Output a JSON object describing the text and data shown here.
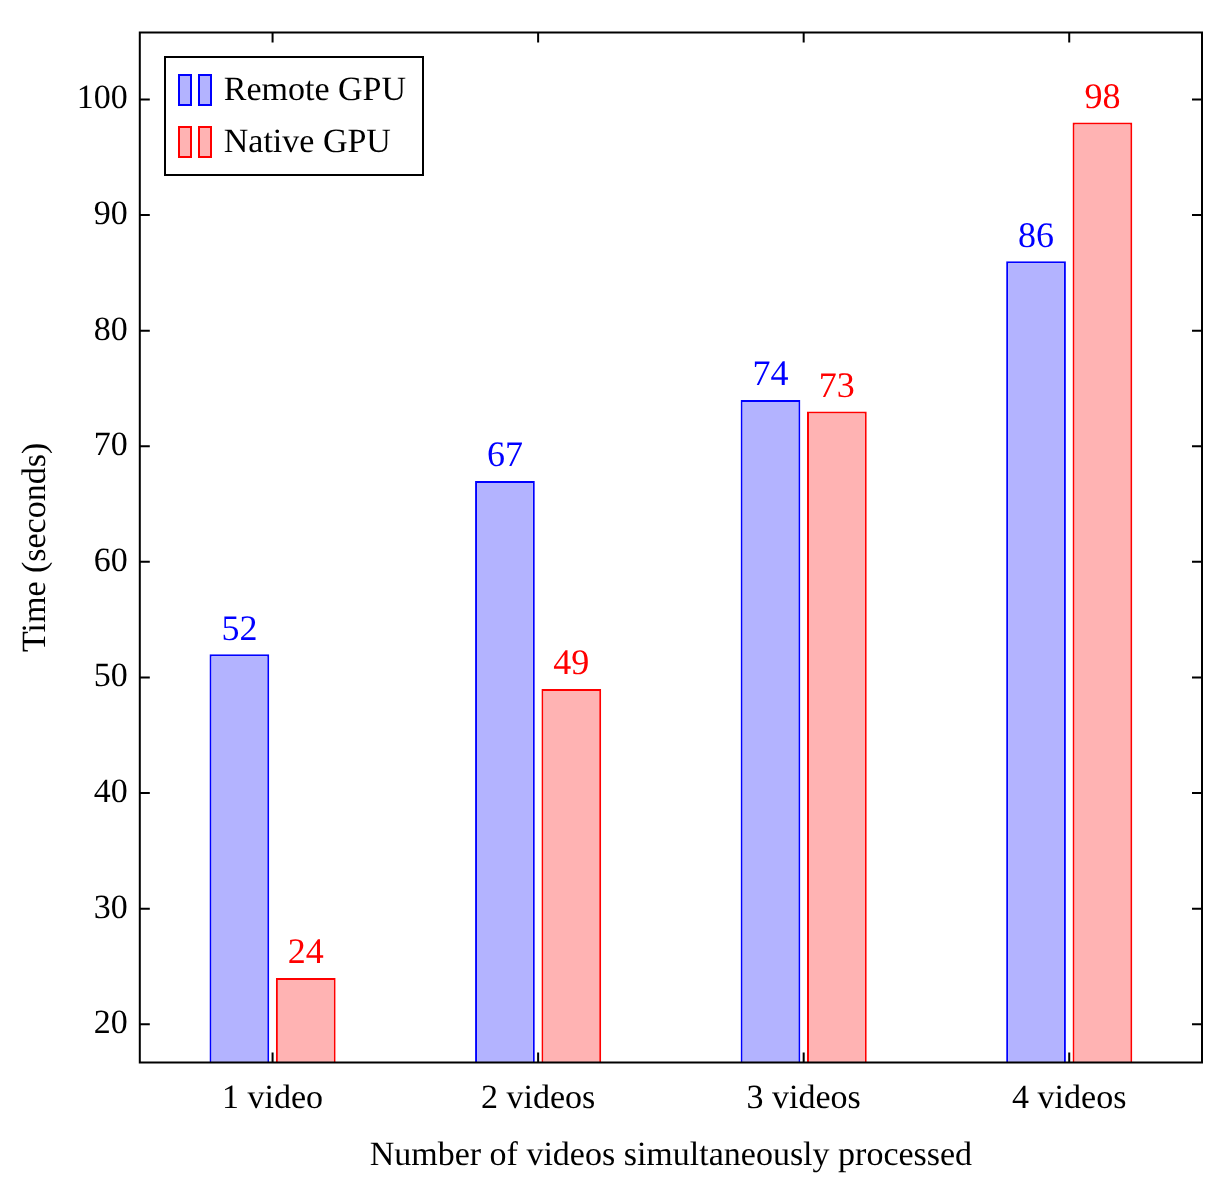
{
  "chart_data": {
    "type": "bar",
    "xlabel": "Number of videos simultaneously processed",
    "ylabel": "Time (seconds)",
    "categories": [
      "1 video",
      "2 videos",
      "3 videos",
      "4 videos"
    ],
    "series": [
      {
        "name": "Remote GPU",
        "color": "#b3b3ff",
        "values": [
          52,
          67,
          74,
          86
        ]
      },
      {
        "name": "Native GPU",
        "color": "#ffb3b3",
        "values": [
          24,
          49,
          73,
          98
        ]
      }
    ],
    "ylim": [
      16.7,
      105.8
    ],
    "yticks": [
      20,
      30,
      40,
      50,
      60,
      70,
      80,
      90,
      100
    ],
    "grid": false,
    "legend": "top left",
    "data_labels": true
  }
}
